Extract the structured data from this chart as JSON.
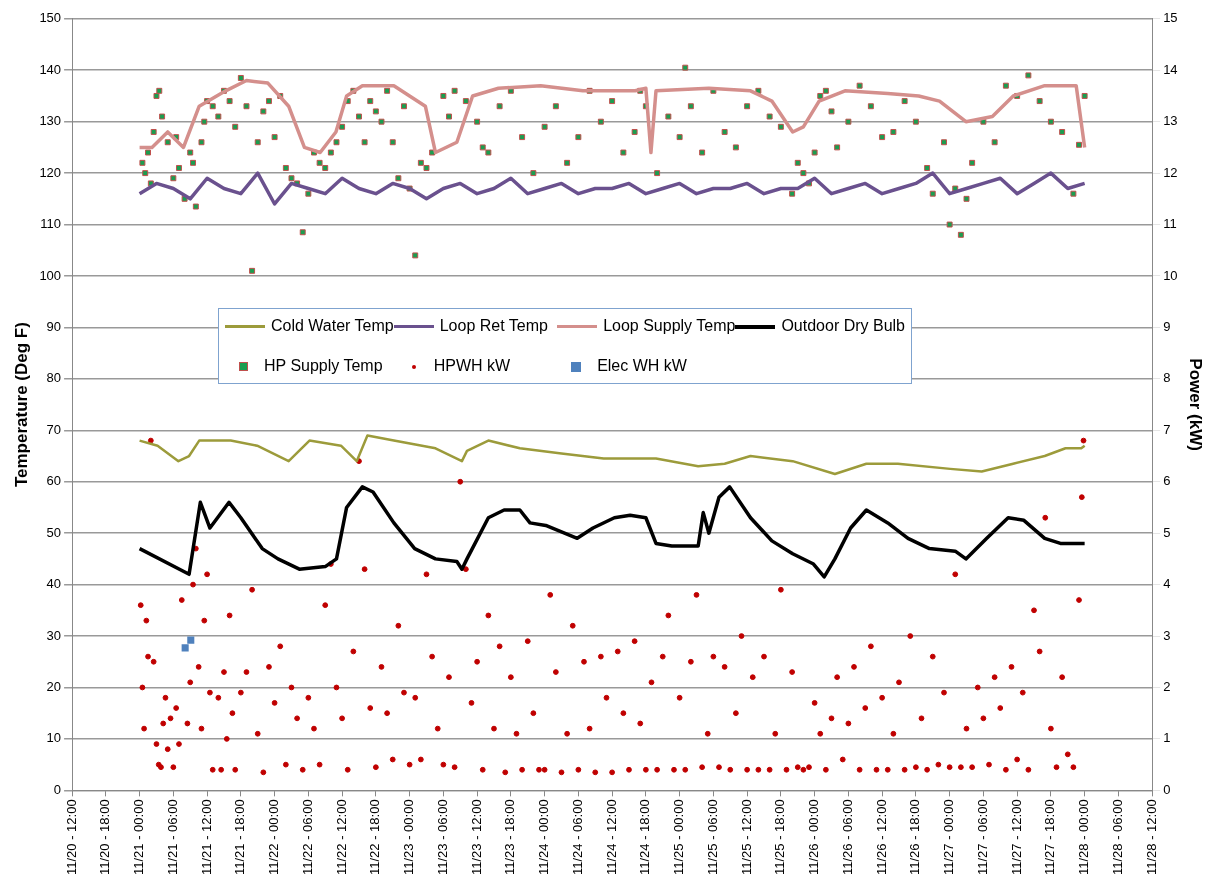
{
  "chart_data": {
    "type": "line",
    "ylabel": "Temperature (Deg F)",
    "y2label": "Power (kW)",
    "xlim": [
      "--11-20T12:00",
      "--11-28T12:00"
    ],
    "xticks": [
      {
        "value": "--11-20T12:00",
        "label": "11/20 - 12:00"
      },
      {
        "value": "--11-20T18:00",
        "label": "11/20 - 18:00"
      },
      {
        "value": "--11-21T00:00",
        "label": "11/21 - 00:00"
      },
      {
        "value": "--11-21T06:00",
        "label": "11/21 - 06:00"
      },
      {
        "value": "--11-21T12:00",
        "label": "11/21 - 12:00"
      },
      {
        "value": "--11-21T18:00",
        "label": "11/21 - 18:00"
      },
      {
        "value": "--11-22T00:00",
        "label": "11/22 - 00:00"
      },
      {
        "value": "--11-22T06:00",
        "label": "11/22 - 06:00"
      },
      {
        "value": "--11-22T12:00",
        "label": "11/22 - 12:00"
      },
      {
        "value": "--11-22T18:00",
        "label": "11/22 - 18:00"
      },
      {
        "value": "--11-23T00:00",
        "label": "11/23 - 00:00"
      },
      {
        "value": "--11-23T06:00",
        "label": "11/23 - 06:00"
      },
      {
        "value": "--11-23T12:00",
        "label": "11/23 - 12:00"
      },
      {
        "value": "--11-23T18:00",
        "label": "11/23 - 18:00"
      },
      {
        "value": "--11-24T00:00",
        "label": "11/24 - 00:00"
      },
      {
        "value": "--11-24T06:00",
        "label": "11/24 - 06:00"
      },
      {
        "value": "--11-24T12:00",
        "label": "11/24 - 12:00"
      },
      {
        "value": "--11-24T18:00",
        "label": "11/24 - 18:00"
      },
      {
        "value": "--11-25T00:00",
        "label": "11/25 - 00:00"
      },
      {
        "value": "--11-25T06:00",
        "label": "11/25 - 06:00"
      },
      {
        "value": "--11-25T12:00",
        "label": "11/25 - 12:00"
      },
      {
        "value": "--11-25T18:00",
        "label": "11/25 - 18:00"
      },
      {
        "value": "--11-26T00:00",
        "label": "11/26 - 00:00"
      },
      {
        "value": "--11-26T06:00",
        "label": "11/26 - 06:00"
      },
      {
        "value": "--11-26T12:00",
        "label": "11/26 - 12:00"
      },
      {
        "value": "--11-26T18:00",
        "label": "11/26 - 18:00"
      },
      {
        "value": "--11-27T00:00",
        "label": "11/27 - 00:00"
      },
      {
        "value": "--11-27T06:00",
        "label": "11/27 - 06:00"
      },
      {
        "value": "--11-27T12:00",
        "label": "11/27 - 12:00"
      },
      {
        "value": "--11-27T18:00",
        "label": "11/27 - 18:00"
      },
      {
        "value": "--11-28T00:00",
        "label": "11/28 - 00:00"
      },
      {
        "value": "--11-28T06:00",
        "label": "11/28 - 06:00"
      },
      {
        "value": "--11-28T12:00",
        "label": "11/28 - 12:00"
      }
    ],
    "ylim": [
      0,
      150
    ],
    "yticks": [
      0,
      10,
      20,
      30,
      40,
      50,
      60,
      70,
      80,
      90,
      100,
      110,
      120,
      130,
      140,
      150
    ],
    "y2lim": [
      0,
      15
    ],
    "y2ticks": [
      0,
      1,
      2,
      3,
      4,
      5,
      6,
      7,
      8,
      9,
      10,
      11,
      12,
      13,
      14,
      15
    ],
    "grid": "y",
    "legend": "center",
    "series": [
      {
        "name": "Cold Water Temp",
        "marker": "none",
        "color": "#9c9b3b",
        "x": [
          "--11-21T00:00",
          "--11-21T03:12",
          "--11-21T06:54",
          "--11-21T08:48",
          "--11-21T10:36",
          "--11-21T16:12",
          "--11-21T20:54",
          "--11-22T02:30",
          "--11-22T06:12",
          "--11-22T11:48",
          "--11-22T14:36",
          "--11-22T16:30",
          "--11-22T21:12",
          "--11-23T04:36",
          "--11-23T09:18",
          "--11-23T10:12",
          "--11-23T14:00",
          "--11-23T19:36",
          "--11-24T03:00",
          "--11-24T10:30",
          "--11-24T19:48",
          "--11-25T03:18",
          "--11-25T08:00",
          "--11-25T12:36",
          "--11-25T20:06",
          "--11-26T03:36",
          "--11-26T09:12",
          "--11-26T14:48",
          "--11-27T00:06",
          "--11-27T05:42",
          "--11-27T11:18",
          "--11-27T16:54",
          "--11-27T20:36",
          "--11-27T23:24",
          "--11-28T00:00"
        ],
        "values": [
          68,
          67,
          64,
          65,
          68,
          68,
          67,
          64,
          68,
          67,
          64,
          69,
          68,
          66.5,
          64,
          66,
          68,
          66.5,
          65.5,
          64.5,
          64.5,
          63,
          63.5,
          65,
          64,
          61.5,
          63.5,
          63.5,
          62.5,
          62,
          63.5,
          65,
          66.5,
          66.5,
          67
        ]
      },
      {
        "name": "Loop Ret Temp",
        "marker": "none",
        "color": "#6a518e",
        "x": [
          "--11-21T00:00",
          "--11-21T03:00",
          "--11-21T06:00",
          "--11-21T09:00",
          "--11-21T12:00",
          "--11-21T15:00",
          "--11-21T18:00",
          "--11-21T21:00",
          "--11-22T00:00",
          "--11-22T03:00",
          "--11-22T06:00",
          "--11-22T09:00",
          "--11-22T12:00",
          "--11-22T15:00",
          "--11-22T18:00",
          "--11-22T21:00",
          "--11-23T00:00",
          "--11-23T03:00",
          "--11-23T06:00",
          "--11-23T09:00",
          "--11-23T12:00",
          "--11-23T15:00",
          "--11-23T18:00",
          "--11-23T21:00",
          "--11-24T00:00",
          "--11-24T03:00",
          "--11-24T06:00",
          "--11-24T09:00",
          "--11-24T12:00",
          "--11-24T15:00",
          "--11-24T18:00",
          "--11-24T21:00",
          "--11-25T00:00",
          "--11-25T03:00",
          "--11-25T06:00",
          "--11-25T09:00",
          "--11-25T12:00",
          "--11-25T15:00",
          "--11-25T18:00",
          "--11-25T21:00",
          "--11-26T00:00",
          "--11-26T03:00",
          "--11-26T06:00",
          "--11-26T09:00",
          "--11-26T12:00",
          "--11-26T15:00",
          "--11-26T18:00",
          "--11-26T21:00",
          "--11-27T00:00",
          "--11-27T03:00",
          "--11-27T06:00",
          "--11-27T09:00",
          "--11-27T12:00",
          "--11-27T15:00",
          "--11-27T18:00",
          "--11-27T21:00",
          "--11-28T00:00"
        ],
        "values": [
          116,
          118,
          117,
          115,
          119,
          117,
          116,
          120,
          114,
          118,
          117,
          116,
          119,
          117,
          116,
          118,
          117,
          115,
          117,
          118,
          116,
          117,
          119,
          116,
          117,
          118,
          116,
          117,
          117,
          118,
          116,
          117,
          118,
          116,
          117,
          117,
          118,
          116,
          117,
          117,
          119,
          116,
          117,
          118,
          116,
          117,
          118,
          120,
          116,
          117,
          118,
          119,
          116,
          118,
          120,
          117,
          118
        ]
      },
      {
        "name": "Loop Supply Temp",
        "marker": "none",
        "color": "#d48f8c",
        "x": [
          "--11-21T00:00",
          "--11-21T02:12",
          "--11-21T05:00",
          "--11-21T07:48",
          "--11-21T10:36",
          "--11-21T15:18",
          "--11-21T19:00",
          "--11-21T22:48",
          "--11-22T02:30",
          "--11-22T05:18",
          "--11-22T08:06",
          "--11-22T10:54",
          "--11-22T12:48",
          "--11-22T15:36",
          "--11-22T21:12",
          "--11-23T02:48",
          "--11-23T04:36",
          "--11-23T08:24",
          "--11-23T11:12",
          "--11-23T15:48",
          "--11-23T23:18",
          "--11-24T06:48",
          "--11-24T16:06",
          "--11-24T18:00",
          "--11-24T18:54",
          "--11-24T19:48",
          "--11-25T05:12",
          "--11-25T12:36",
          "--11-25T16:24",
          "--11-25T20:06",
          "--11-25T22:00",
          "--11-26T00:48",
          "--11-26T05:24",
          "--11-26T13:00",
          "--11-26T18:30",
          "--11-26T22:12",
          "--11-27T02:54",
          "--11-27T07:36",
          "--11-27T11:18",
          "--11-27T16:54",
          "--11-27T22:30",
          "--11-28T00:00"
        ],
        "values": [
          125,
          125,
          128,
          125,
          133,
          136,
          138,
          137.5,
          133,
          125,
          124,
          128,
          135,
          137,
          137,
          133,
          124,
          126,
          135,
          136.5,
          137,
          136,
          136,
          136.5,
          124,
          136,
          136.5,
          136,
          134,
          128,
          129,
          134,
          136,
          135.5,
          135,
          134,
          130,
          131,
          135,
          137,
          137,
          125
        ]
      },
      {
        "name": "Outdoor Dry Bulb",
        "marker": "none",
        "color": "#000000",
        "x": [
          "--11-21T00:00",
          "--11-21T08:48",
          "--11-21T10:48",
          "--11-21T12:30",
          "--11-21T15:54",
          "--11-21T18:00",
          "--11-21T21:48",
          "--11-22T00:36",
          "--11-22T04:24",
          "--11-22T09:00",
          "--11-22T11:00",
          "--11-22T12:48",
          "--11-22T15:36",
          "--11-22T17:30",
          "--11-22T21:12",
          "--11-23T00:54",
          "--11-23T04:36",
          "--11-23T08:24",
          "--11-23T09:18",
          "--11-23T10:12",
          "--11-23T14:00",
          "--11-23T16:48",
          "--11-23T19:36",
          "--11-23T21:24",
          "--11-24T00:12",
          "--11-24T05:48",
          "--11-24T08:36",
          "--11-24T12:24",
          "--11-24T15:12",
          "--11-24T18:00",
          "--11-24T19:48",
          "--11-24T22:36",
          "--11-25T03:18",
          "--11-25T04:12",
          "--11-25T05:12",
          "--11-25T07:00",
          "--11-25T08:54",
          "--11-25T12:36",
          "--11-25T16:24",
          "--11-25T20:06",
          "--11-25T23:48",
          "--11-26T01:42",
          "--11-26T03:36",
          "--11-26T06:24",
          "--11-26T09:12",
          "--11-26T13:00",
          "--11-26T16:36",
          "--11-26T20:24",
          "--11-27T01:00",
          "--11-27T02:54",
          "--11-27T06:36",
          "--11-27T10:24",
          "--11-27T13:12",
          "--11-27T16:54",
          "--11-27T19:42",
          "--11-28T00:00"
        ],
        "values": [
          47,
          42,
          56,
          51,
          56,
          53,
          47,
          45,
          43,
          43.5,
          45,
          55,
          59,
          58,
          52,
          47,
          45,
          44.5,
          43,
          45,
          53,
          54.5,
          54.5,
          52,
          51.5,
          49,
          51,
          53,
          53.5,
          53,
          48,
          47.5,
          47.5,
          54,
          50,
          57,
          59,
          53,
          48.5,
          46,
          44,
          41.5,
          45,
          51,
          54.5,
          52,
          49,
          47,
          46.5,
          45,
          49,
          53,
          52.5,
          49,
          48,
          48
        ]
      },
      {
        "name": "HP Supply Temp",
        "type": "scatter",
        "marker": "square",
        "color": "#1a9e50",
        "x": [
          "--11-21T00:30",
          "--11-21T01:00",
          "--11-21T01:30",
          "--11-21T02:00",
          "--11-21T02:30",
          "--11-21T03:00",
          "--11-21T03:30",
          "--11-21T04:00",
          "--11-21T05:00",
          "--11-21T06:00",
          "--11-21T06:30",
          "--11-21T07:00",
          "--11-21T08:00",
          "--11-21T09:00",
          "--11-21T09:30",
          "--11-21T10:00",
          "--11-21T11:00",
          "--11-21T11:30",
          "--11-21T12:00",
          "--11-21T13:00",
          "--11-21T14:00",
          "--11-21T15:00",
          "--11-21T16:00",
          "--11-21T17:00",
          "--11-21T18:00",
          "--11-21T19:00",
          "--11-21T20:00",
          "--11-21T21:00",
          "--11-21T22:00",
          "--11-21T23:00",
          "--11-22T00:00",
          "--11-22T01:00",
          "--11-22T02:00",
          "--11-22T03:00",
          "--11-22T04:00",
          "--11-22T05:00",
          "--11-22T06:00",
          "--11-22T07:00",
          "--11-22T08:00",
          "--11-22T09:00",
          "--11-22T10:00",
          "--11-22T11:00",
          "--11-22T12:00",
          "--11-22T13:00",
          "--11-22T14:00",
          "--11-22T15:00",
          "--11-22T16:00",
          "--11-22T17:00",
          "--11-22T18:00",
          "--11-22T19:00",
          "--11-22T20:00",
          "--11-22T21:00",
          "--11-22T22:00",
          "--11-22T23:00",
          "--11-23T00:00",
          "--11-23T01:00",
          "--11-23T02:00",
          "--11-23T03:00",
          "--11-23T04:00",
          "--11-23T06:00",
          "--11-23T07:00",
          "--11-23T08:00",
          "--11-23T10:00",
          "--11-23T12:00",
          "--11-23T13:00",
          "--11-23T14:00",
          "--11-23T16:00",
          "--11-23T18:00",
          "--11-23T20:00",
          "--11-23T22:00",
          "--11-24T00:00",
          "--11-24T02:00",
          "--11-24T04:00",
          "--11-24T06:00",
          "--11-24T08:00",
          "--11-24T10:00",
          "--11-24T12:00",
          "--11-24T14:00",
          "--11-24T16:00",
          "--11-24T17:00",
          "--11-24T18:00",
          "--11-24T20:00",
          "--11-24T22:00",
          "--11-25T00:00",
          "--11-25T01:00",
          "--11-25T02:00",
          "--11-25T04:00",
          "--11-25T06:00",
          "--11-25T08:00",
          "--11-25T10:00",
          "--11-25T12:00",
          "--11-25T14:00",
          "--11-25T16:00",
          "--11-25T18:00",
          "--11-25T20:00",
          "--11-25T21:00",
          "--11-25T22:00",
          "--11-25T23:00",
          "--11-26T00:00",
          "--11-26T01:00",
          "--11-26T02:00",
          "--11-26T03:00",
          "--11-26T04:00",
          "--11-26T06:00",
          "--11-26T08:00",
          "--11-26T10:00",
          "--11-26T12:00",
          "--11-26T14:00",
          "--11-26T16:00",
          "--11-26T18:00",
          "--11-26T20:00",
          "--11-26T21:00",
          "--11-26T23:00",
          "--11-27T00:00",
          "--11-27T01:00",
          "--11-27T02:00",
          "--11-27T03:00",
          "--11-27T04:00",
          "--11-27T06:00",
          "--11-27T08:00",
          "--11-27T10:00",
          "--11-27T12:00",
          "--11-27T14:00",
          "--11-27T16:00",
          "--11-27T18:00",
          "--11-27T20:00",
          "--11-27T22:00",
          "--11-27T23:00",
          "--11-28T00:00"
        ],
        "values": [
          122,
          120,
          124,
          118,
          128,
          135,
          136,
          131,
          126,
          119,
          127,
          121,
          115,
          124,
          122,
          113.5,
          126,
          130,
          134,
          133,
          131,
          136,
          134,
          129,
          138.5,
          133,
          101,
          126,
          132,
          134,
          127,
          135,
          121,
          119,
          118,
          108.5,
          116,
          124,
          122,
          121,
          124,
          126,
          129,
          134,
          136,
          131,
          126,
          134,
          132,
          130,
          136,
          126,
          119,
          133,
          117,
          104,
          122,
          121,
          124,
          135,
          131,
          136,
          134,
          130,
          125,
          124,
          133,
          136,
          127,
          120,
          129,
          133,
          122,
          127,
          136,
          130,
          134,
          124,
          128,
          136,
          133,
          120,
          131,
          127,
          140.5,
          133,
          124,
          136,
          128,
          125,
          133,
          136,
          131,
          129,
          116,
          122,
          120,
          118,
          124,
          135,
          136,
          132,
          125,
          130,
          137,
          133,
          127,
          128,
          134,
          130,
          121,
          116,
          126,
          110,
          117,
          108,
          115,
          122,
          130,
          126,
          137,
          135,
          139,
          134,
          130,
          128,
          116,
          125.5,
          135
        ]
      },
      {
        "name": "HPWH kW",
        "type": "scatter",
        "marker": "circle",
        "axis": "y2",
        "color": "#c00000",
        "x": [
          "--11-21T00:12",
          "--11-21T00:30",
          "--11-21T00:48",
          "--11-21T01:12",
          "--11-21T01:30",
          "--11-21T02:00",
          "--11-21T02:30",
          "--11-21T03:00",
          "--11-21T03:24",
          "--11-21T03:48",
          "--11-21T04:12",
          "--11-21T04:36",
          "--11-21T05:00",
          "--11-21T05:30",
          "--11-21T06:00",
          "--11-21T06:30",
          "--11-21T07:00",
          "--11-21T07:30",
          "--11-21T08:30",
          "--11-21T09:00",
          "--11-21T09:30",
          "--11-21T10:00",
          "--11-21T10:30",
          "--11-21T11:00",
          "--11-21T11:30",
          "--11-21T12:00",
          "--11-21T12:30",
          "--11-21T13:00",
          "--11-21T14:00",
          "--11-21T14:30",
          "--11-21T15:00",
          "--11-21T15:30",
          "--11-21T16:00",
          "--11-21T16:30",
          "--11-21T17:00",
          "--11-21T18:00",
          "--11-21T19:00",
          "--11-21T20:00",
          "--11-21T21:00",
          "--11-21T22:00",
          "--11-21T23:00",
          "--11-22T00:00",
          "--11-22T01:00",
          "--11-22T02:00",
          "--11-22T03:00",
          "--11-22T04:00",
          "--11-22T05:00",
          "--11-22T06:00",
          "--11-22T07:00",
          "--11-22T08:00",
          "--11-22T09:00",
          "--11-22T10:00",
          "--11-22T11:00",
          "--11-22T12:00",
          "--11-22T13:00",
          "--11-22T14:00",
          "--11-22T15:00",
          "--11-22T16:00",
          "--11-22T17:00",
          "--11-22T18:00",
          "--11-22T19:00",
          "--11-22T20:00",
          "--11-22T21:00",
          "--11-22T22:00",
          "--11-22T23:00",
          "--11-23T00:00",
          "--11-23T01:00",
          "--11-23T02:00",
          "--11-23T03:00",
          "--11-23T04:00",
          "--11-23T05:00",
          "--11-23T06:00",
          "--11-23T07:00",
          "--11-23T08:00",
          "--11-23T09:00",
          "--11-23T10:00",
          "--11-23T11:00",
          "--11-23T12:00",
          "--11-23T13:00",
          "--11-23T14:00",
          "--11-23T15:00",
          "--11-23T16:00",
          "--11-23T17:00",
          "--11-23T18:00",
          "--11-23T19:00",
          "--11-23T20:00",
          "--11-23T21:00",
          "--11-23T22:00",
          "--11-23T23:00",
          "--11-24T00:00",
          "--11-24T01:00",
          "--11-24T02:00",
          "--11-24T03:00",
          "--11-24T04:00",
          "--11-24T05:00",
          "--11-24T06:00",
          "--11-24T07:00",
          "--11-24T08:00",
          "--11-24T09:00",
          "--11-24T10:00",
          "--11-24T11:00",
          "--11-24T12:00",
          "--11-24T13:00",
          "--11-24T14:00",
          "--11-24T15:00",
          "--11-24T16:00",
          "--11-24T17:00",
          "--11-24T18:00",
          "--11-24T19:00",
          "--11-24T20:00",
          "--11-24T21:00",
          "--11-24T22:00",
          "--11-24T23:00",
          "--11-25T00:00",
          "--11-25T01:00",
          "--11-25T02:00",
          "--11-25T03:00",
          "--11-25T04:00",
          "--11-25T05:00",
          "--11-25T06:00",
          "--11-25T07:00",
          "--11-25T08:00",
          "--11-25T09:00",
          "--11-25T10:00",
          "--11-25T11:00",
          "--11-25T12:00",
          "--11-25T13:00",
          "--11-25T14:00",
          "--11-25T15:00",
          "--11-25T16:00",
          "--11-25T17:00",
          "--11-25T18:00",
          "--11-25T19:00",
          "--11-25T20:00",
          "--11-25T21:00",
          "--11-25T22:00",
          "--11-25T23:00",
          "--11-26T00:00",
          "--11-26T01:00",
          "--11-26T02:00",
          "--11-26T03:00",
          "--11-26T04:00",
          "--11-26T05:00",
          "--11-26T06:00",
          "--11-26T07:00",
          "--11-26T08:00",
          "--11-26T09:00",
          "--11-26T10:00",
          "--11-26T11:00",
          "--11-26T12:00",
          "--11-26T13:00",
          "--11-26T14:00",
          "--11-26T15:00",
          "--11-26T16:00",
          "--11-26T17:00",
          "--11-26T18:00",
          "--11-26T19:00",
          "--11-26T20:00",
          "--11-26T21:00",
          "--11-26T22:00",
          "--11-26T23:00",
          "--11-27T00:00",
          "--11-27T01:00",
          "--11-27T02:00",
          "--11-27T03:00",
          "--11-27T04:00",
          "--11-27T05:00",
          "--11-27T06:00",
          "--11-27T07:00",
          "--11-27T08:00",
          "--11-27T09:00",
          "--11-27T10:00",
          "--11-27T11:00",
          "--11-27T12:00",
          "--11-27T13:00",
          "--11-27T14:00",
          "--11-27T15:00",
          "--11-27T16:00",
          "--11-27T17:00",
          "--11-27T18:00",
          "--11-27T19:00",
          "--11-27T20:00",
          "--11-27T21:00",
          "--11-27T22:00",
          "--11-27T23:00",
          "--11-27T23:30",
          "--11-27T23:48"
        ],
        "values": [
          3.6,
          2,
          1.2,
          3.3,
          2.6,
          6.8,
          2.5,
          0.9,
          0.5,
          0.45,
          1.3,
          1.8,
          0.8,
          1.4,
          0.45,
          1.6,
          0.9,
          3.7,
          1.3,
          2.1,
          4,
          4.7,
          2.4,
          1.2,
          3.3,
          4.2,
          1.9,
          0.4,
          1.8,
          0.4,
          2.3,
          1,
          3.4,
          1.5,
          0.4,
          1.9,
          2.3,
          3.9,
          1.1,
          0.35,
          2.4,
          1.7,
          2.8,
          0.5,
          2,
          1.4,
          0.4,
          1.8,
          1.2,
          0.5,
          3.6,
          4.4,
          2,
          1.4,
          0.4,
          2.7,
          6.4,
          4.3,
          1.6,
          0.45,
          2.4,
          1.5,
          0.6,
          3.2,
          1.9,
          0.5,
          1.8,
          0.6,
          4.2,
          2.6,
          1.2,
          0.5,
          2.2,
          0.45,
          6,
          4.3,
          1.7,
          2.5,
          0.4,
          3.4,
          1.2,
          2.8,
          0.35,
          2.2,
          1.1,
          0.4,
          2.9,
          1.5,
          0.4,
          0.4,
          3.8,
          2.3,
          0.35,
          1.1,
          3.2,
          0.4,
          2.5,
          1.2,
          0.35,
          2.6,
          1.8,
          0.35,
          2.7,
          1.5,
          0.4,
          2.9,
          1.3,
          0.4,
          2.1,
          0.4,
          2.6,
          3.4,
          0.4,
          1.8,
          0.4,
          2.5,
          3.8,
          0.45,
          1.1,
          2.6,
          0.45,
          2.4,
          0.4,
          1.5,
          3,
          0.4,
          2.2,
          0.4,
          2.6,
          0.4,
          1.1,
          3.9,
          0.4,
          2.3,
          0.45,
          0.4,
          0.45,
          1.7,
          1.1,
          0.4,
          1.4,
          2.2,
          0.6,
          1.3,
          2.4,
          0.4,
          1.6,
          2.8,
          0.4,
          1.8,
          0.4,
          1.1,
          2.1,
          0.4,
          3,
          0.45,
          1.4,
          0.4,
          2.6,
          0.5,
          1.9,
          0.45,
          4.2,
          0.45,
          1.2,
          0.45,
          2,
          1.4,
          0.5,
          2.2,
          1.6,
          0.4,
          2.4,
          0.6,
          1.9,
          0.4,
          3.5,
          2.7,
          5.3,
          1.2,
          0.45,
          2.2,
          0.7,
          0.45,
          3.7,
          5.7,
          6.8
        ]
      },
      {
        "name": "Elec WH kW",
        "type": "scatter",
        "marker": "square",
        "axis": "y2",
        "color": "#4f81bd",
        "x": [
          "--11-21T08:06",
          "--11-21T09:06"
        ],
        "values": [
          2.77,
          2.92
        ]
      }
    ]
  }
}
